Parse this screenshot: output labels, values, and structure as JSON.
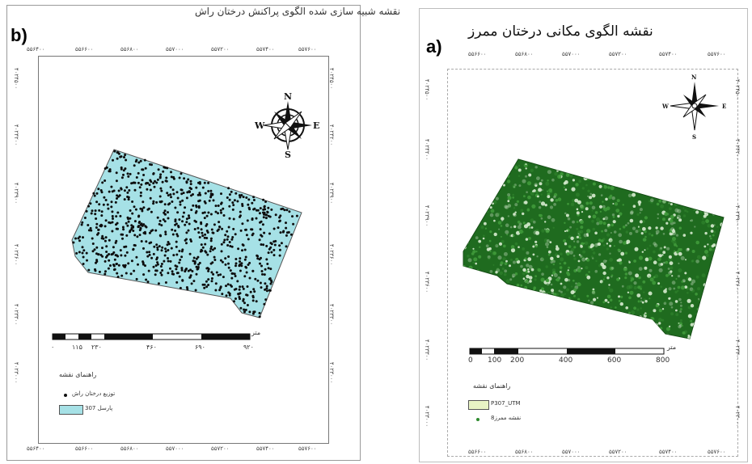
{
  "panel_b": {
    "letter": "b)",
    "title": "نقشه شبیه سازی شده الگوی پراکنش درختان راش",
    "x_ticks": [
      "۵۵۶۴۰۰",
      "۵۵۶۶۰۰",
      "۵۵۶۸۰۰",
      "۵۵۷۰۰۰",
      "۵۵۷۲۰۰",
      "۵۵۷۴۰۰",
      "۵۵۷۶۰۰"
    ],
    "y_ticks": [
      "۴۰۲۴۵۰۰",
      "۴۰۲۴۲۰۰",
      "۴۰۲۳۹۰۰",
      "۴۰۲۳۶۰۰",
      "۴۰۲۳۳۰۰",
      "۴۰۲۳۰۰۰"
    ],
    "north": {
      "N": "N",
      "S": "S",
      "E": "E",
      "W": "W"
    },
    "scale": {
      "unit": "متر",
      "labels": [
        "۰",
        "۱۱۵",
        "۲۳۰",
        "۴۶۰",
        "۶۹۰",
        "۹۲۰"
      ]
    },
    "legend": {
      "title": "راهنمای نقشه",
      "items": [
        {
          "label": "توزیع درختان راش",
          "symbol": "dot",
          "color": "#111111"
        },
        {
          "label": "پارسل 307",
          "symbol": "box",
          "color": "#a6e1e6"
        }
      ]
    },
    "colors": {
      "parcel": "#a6e1e6",
      "points": "#0d0d0d"
    }
  },
  "panel_a": {
    "letter": "a)",
    "title": "نقشه الگوی مکانی درختان ممرز",
    "x_ticks": [
      "۵۵۶۶۰۰",
      "۵۵۶۸۰۰",
      "۵۵۷۰۰۰",
      "۵۵۷۲۰۰",
      "۵۵۷۴۰۰",
      "۵۵۷۶۰۰"
    ],
    "y_ticks": [
      "۴۰۲۴۵۰۰",
      "۴۰۲۴۲۰۰",
      "۴۰۲۳۹۰۰",
      "۴۰۲۳۶۰۰",
      "۴۰۲۳۳۰۰",
      "۴۰۲۳۰۰۰"
    ],
    "north": {
      "N": "N",
      "S": "S",
      "E": "E",
      "W": "W"
    },
    "scale": {
      "unit": "متر",
      "labels": [
        "0",
        "100",
        "200",
        "400",
        "600",
        "800"
      ]
    },
    "legend": {
      "title": "راهنمای نقشه",
      "items": [
        {
          "label": "P307_UTM",
          "symbol": "box",
          "color": "#e8f4c4"
        },
        {
          "label": "نقشه ممرز8",
          "symbol": "dot",
          "color": "#2e8b2e"
        }
      ]
    },
    "colors": {
      "stand": "#1f6b1f",
      "stand_light": "#3f9a3a",
      "points": "#2e8b2e"
    }
  }
}
